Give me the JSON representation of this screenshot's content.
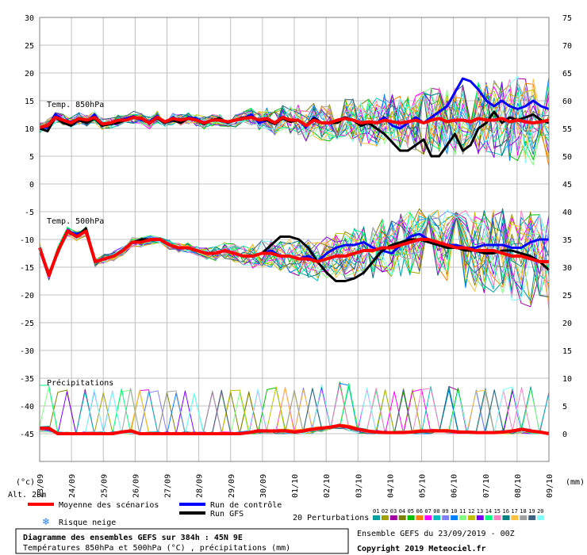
{
  "chart_data": {
    "type": "line",
    "dates": [
      "23/09",
      "24/09",
      "25/09",
      "26/09",
      "27/09",
      "28/09",
      "29/09",
      "30/09",
      "01/10",
      "02/10",
      "03/10",
      "04/10",
      "05/10",
      "06/10",
      "07/10",
      "08/10",
      "09/10"
    ],
    "left_axis_ticks": [
      "30",
      "25",
      "20",
      "15",
      "10",
      "5",
      "0",
      "-5",
      "-10",
      "-15",
      "-20",
      "-25",
      "-30",
      "-35",
      "-40",
      "-45"
    ],
    "right_axis_ticks": [
      "75",
      "70",
      "65",
      "60",
      "55",
      "50",
      "45",
      "40",
      "35",
      "30",
      "25",
      "20",
      "15",
      "10",
      "5",
      "0"
    ],
    "left_axis_title": "(°c)",
    "right_axis_title": "(mm)",
    "alt_label": "Alt. 20m",
    "panels": {
      "t850": "Temp. 850hPa",
      "t500": "Temp. 500hPa",
      "precip": "Précipitations"
    },
    "legend": {
      "mean": "Moyenne des scénarios",
      "control": "Run de contrôle",
      "gfs": "Run GFS",
      "snow": "Risque neige",
      "perturbations": "20 Perturbations",
      "perturbation_ids": [
        "01",
        "02",
        "03",
        "04",
        "05",
        "06",
        "07",
        "08",
        "09",
        "10",
        "11",
        "12",
        "13",
        "14",
        "15",
        "16",
        "17",
        "18",
        "19",
        "20"
      ]
    },
    "perturbation_colors": [
      "#00a0a0",
      "#a0a000",
      "#a000a0",
      "#808000",
      "#00c000",
      "#ff8000",
      "#ff00ff",
      "#00c0c0",
      "#8080ff",
      "#0080ff",
      "#80ff80",
      "#c0c000",
      "#8000ff",
      "#00ff80",
      "#ff80c0",
      "#008080",
      "#ffc040",
      "#a0a0a0",
      "#406080",
      "#80ffff"
    ],
    "series_colors": {
      "mean": "#ff0000",
      "control": "#0000ff",
      "gfs": "#000000"
    },
    "t850": {
      "mean": [
        10.2,
        10.5,
        12,
        11.5,
        11,
        11.8,
        11.5,
        12,
        10.8,
        11,
        11.5,
        11.5,
        12,
        11.8,
        11,
        12,
        11.2,
        11.8,
        11.5,
        11.8,
        11.5,
        11,
        11.5,
        11.5,
        11.2,
        11.5,
        11.8,
        12,
        11.5,
        11.8,
        11,
        12,
        11.5,
        11.5,
        10.5,
        11.5,
        11,
        11,
        11.5,
        11.8,
        11.5,
        11,
        11.2,
        11,
        11.5,
        11.2,
        11,
        11.2,
        11.5,
        11,
        11.5,
        11.8,
        11.2,
        11.5,
        11.5,
        11.2,
        11.8,
        11.5,
        11.5,
        11.8,
        11.2,
        11.5,
        11.2,
        11,
        11.2,
        11.5
      ],
      "control": [
        10,
        10.2,
        12.5,
        11.5,
        11.2,
        11.8,
        11.2,
        12.5,
        10.5,
        11,
        11.5,
        11.8,
        12.2,
        11.5,
        11.2,
        12.2,
        11,
        12,
        11.2,
        12,
        11.8,
        11,
        11.5,
        11.8,
        11,
        11.5,
        11.8,
        12.5,
        11,
        11.5,
        10.8,
        12,
        11.5,
        11.5,
        10.2,
        12,
        11,
        11,
        11.5,
        12,
        11.5,
        10.5,
        11,
        11,
        12,
        10.5,
        10,
        11,
        12,
        11,
        12,
        13,
        14,
        16.5,
        19,
        18.5,
        17,
        15,
        14,
        15,
        14,
        13.5,
        14,
        15,
        14,
        13.5
      ],
      "gfs": [
        10,
        9.5,
        12,
        11,
        10.5,
        11.5,
        11,
        11.8,
        10.5,
        10.8,
        11,
        11.5,
        12,
        11.8,
        11,
        11.8,
        11,
        11.5,
        11,
        11.8,
        11.5,
        10.8,
        11.5,
        11.8,
        11,
        11.5,
        12,
        12,
        11.5,
        11.5,
        10.8,
        11.8,
        11.2,
        11.5,
        10.5,
        11.8,
        11,
        11,
        11,
        12,
        11.5,
        10.5,
        11,
        10,
        9,
        7.5,
        6,
        6,
        7,
        8,
        5,
        5,
        7,
        9,
        6,
        7,
        10,
        11,
        13,
        11,
        12,
        11.5,
        12,
        12.5,
        11.5,
        11
      ]
    },
    "t500": {
      "mean": [
        -11.5,
        -16.5,
        -12,
        -8.5,
        -9.5,
        -8.5,
        -14,
        -13.5,
        -13,
        -12,
        -10.5,
        -10.5,
        -10,
        -10,
        -11,
        -11.5,
        -11.5,
        -12,
        -12.5,
        -12.5,
        -12,
        -12.5,
        -13,
        -13,
        -12.5,
        -12.5,
        -13,
        -13,
        -13.5,
        -13.5,
        -14,
        -13.5,
        -13,
        -13,
        -12.5,
        -12,
        -12,
        -11.5,
        -11.5,
        -11,
        -10.5,
        -10,
        -10,
        -10.5,
        -11,
        -11.5,
        -11.5,
        -12,
        -12,
        -12,
        -12.5,
        -13,
        -13,
        -13.5,
        -14,
        -14
      ],
      "control": [
        -11.5,
        -16.5,
        -12,
        -8.5,
        -9,
        -8.5,
        -14,
        -13.5,
        -13,
        -12,
        -10.5,
        -10.5,
        -10,
        -10,
        -11,
        -11.5,
        -11.5,
        -12,
        -12.5,
        -12.5,
        -12,
        -12.5,
        -13,
        -13,
        -12.5,
        -12,
        -13,
        -13,
        -13.5,
        -13,
        -14,
        -12.5,
        -11.5,
        -11,
        -11,
        -10.5,
        -11.5,
        -12,
        -12.5,
        -11,
        -9.5,
        -9,
        -10,
        -10.5,
        -11,
        -11,
        -11.5,
        -11.5,
        -11,
        -11,
        -11,
        -11.5,
        -11.5,
        -10.5,
        -10,
        -10
      ],
      "gfs": [
        -11.5,
        -16.5,
        -12,
        -8.5,
        -9.5,
        -8,
        -14,
        -13.5,
        -13,
        -12,
        -10.5,
        -10,
        -10,
        -10,
        -11,
        -11.5,
        -11.5,
        -12,
        -12.5,
        -12.5,
        -12,
        -12.5,
        -13,
        -13,
        -12.5,
        -11,
        -9.5,
        -9.5,
        -10,
        -11.5,
        -14,
        -16,
        -17.5,
        -17.5,
        -17,
        -16,
        -14,
        -12,
        -11,
        -10.5,
        -10,
        -10,
        -10.5,
        -11,
        -11.5,
        -11.5,
        -12,
        -12,
        -12.5,
        -12.5,
        -12,
        -12,
        -12.5,
        -13,
        -14,
        -15.5
      ]
    },
    "precip": {
      "mean": [
        1,
        1,
        0,
        0,
        0,
        0,
        0,
        0,
        0,
        0.3,
        0.5,
        0,
        0,
        0,
        0,
        0,
        0,
        0,
        0,
        0,
        0,
        0,
        0,
        0.2,
        0.5,
        0.5,
        0.5,
        0.5,
        0.3,
        0.5,
        0.8,
        1,
        1.2,
        1.5,
        1.2,
        0.8,
        0.5,
        0.3,
        0.2,
        0.2,
        0.2,
        0.3,
        0.5,
        0.5,
        0.5,
        0.5,
        0.3,
        0.3,
        0.2,
        0.2,
        0.2,
        0.3,
        0.5,
        0.8,
        0.5,
        0.3,
        0
      ]
    }
  }
}
